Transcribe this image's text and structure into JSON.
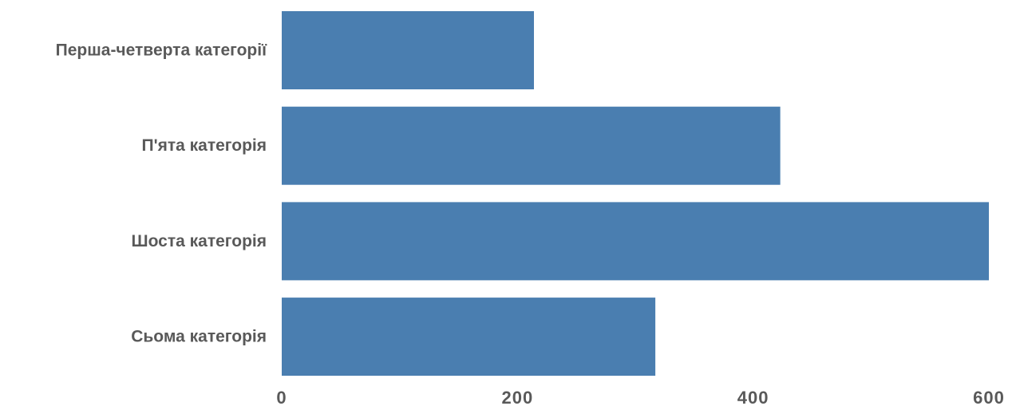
{
  "chart_data": {
    "type": "bar",
    "orientation": "horizontal",
    "categories": [
      "Перша-четверта категорії",
      "П'ята категорія",
      "Шоста категорія",
      "Сьома категорія"
    ],
    "values": [
      214,
      423,
      600,
      317
    ],
    "title": "",
    "xlabel": "",
    "ylabel": "",
    "xlim": [
      0,
      600
    ],
    "x_ticks": [
      0,
      200,
      400,
      600
    ],
    "grid": false,
    "legend": "none",
    "bar_color": "#4a7eb0",
    "text_color": "#595959"
  }
}
